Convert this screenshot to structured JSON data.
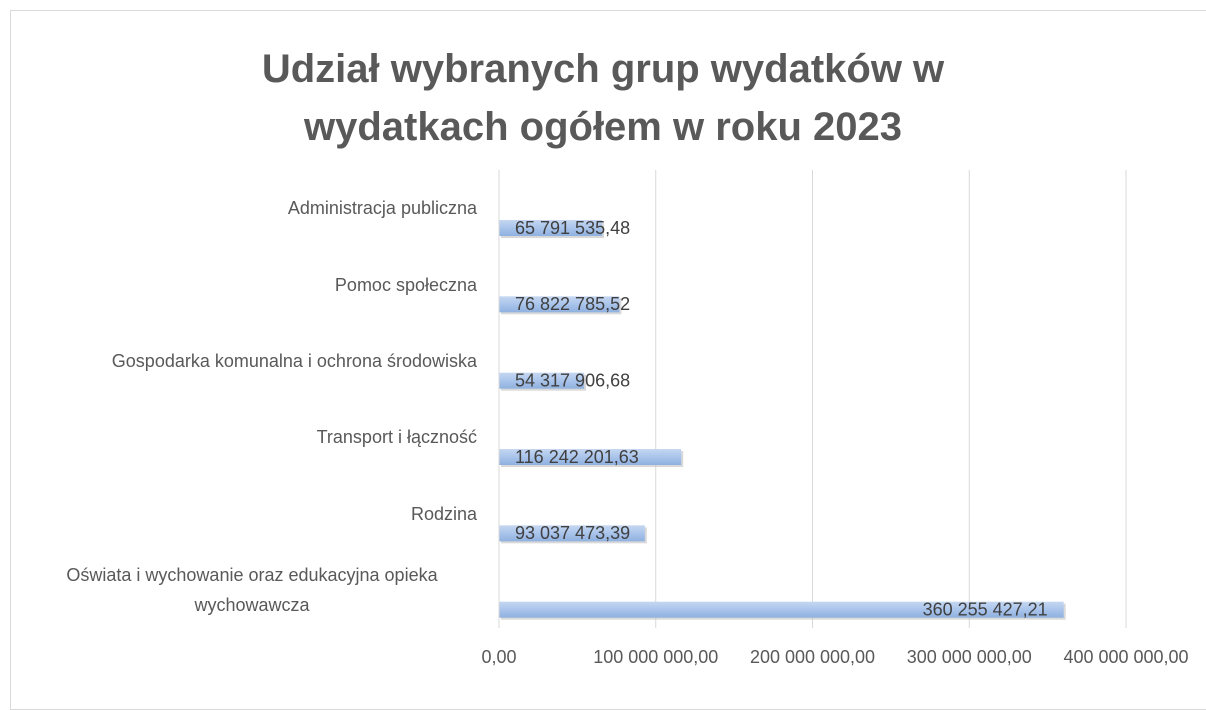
{
  "chart_data": {
    "type": "bar",
    "orientation": "horizontal",
    "title": "Udział wybranych grup wydatków w wydatkach ogółem w roku 2023",
    "categories": [
      "Administracja publiczna",
      "Pomoc społeczna",
      "Gospodarka komunalna i ochrona środowiska",
      "Transport i łączność",
      "Rodzina",
      "Oświata i wychowanie oraz edukacyjna opieka wychowawcza"
    ],
    "values": [
      65791535.48,
      76822785.52,
      54317906.68,
      116242201.63,
      93037473.39,
      360255427.21
    ],
    "value_labels": [
      "65 791 535,48",
      "76 822 785,52",
      "54 317 906,68",
      "116 242 201,63",
      "93 037 473,39",
      "360 255 427,21"
    ],
    "color": "#a9c4eb",
    "xlim": [
      0,
      400000000
    ],
    "xticks": [
      {
        "value": 0,
        "label": "0,00"
      },
      {
        "value": 100000000,
        "label": "100 000 000,00"
      },
      {
        "value": 200000000,
        "label": "200 000 000,00"
      },
      {
        "value": 300000000,
        "label": "300 000 000,00"
      },
      {
        "value": 400000000,
        "label": "400 000 000,00"
      }
    ],
    "grid": true
  }
}
